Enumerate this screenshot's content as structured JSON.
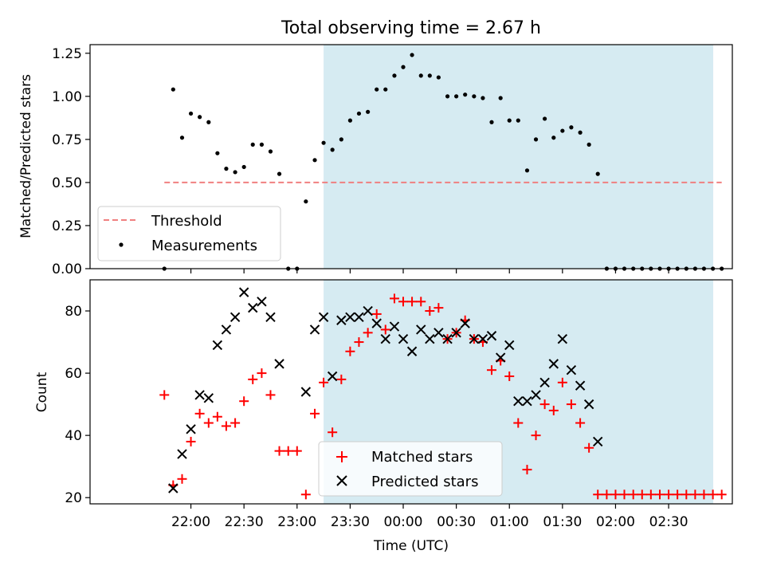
{
  "figure": {
    "title": "Total observing time = 2.67 h",
    "xlabel": "Time (UTC)",
    "x_ticks": [
      "22:00",
      "22:30",
      "23:00",
      "23:30",
      "00:00",
      "00:30",
      "01:00",
      "01:30",
      "02:00",
      "02:30"
    ],
    "x_tick_hours": [
      0,
      0.5,
      1,
      1.5,
      2,
      2.5,
      3,
      3.5,
      4,
      4.5
    ],
    "xlim_hours_after_2200": [
      -0.95,
      5.1
    ],
    "observing_window_hours_after_2200": [
      1.25,
      4.92
    ],
    "observing_window_color": "#add8e6"
  },
  "chart_data": [
    {
      "type": "scatter",
      "ylabel": "Matched/Predicted stars",
      "ylim": [
        0,
        1.3
      ],
      "y_ticks": [
        "0.00",
        "0.25",
        "0.50",
        "0.75",
        "1.00",
        "1.25"
      ],
      "y_tick_values": [
        0,
        0.25,
        0.5,
        0.75,
        1.0,
        1.25
      ],
      "legend_position": "lower-left",
      "threshold": {
        "name": "Threshold",
        "value": 0.5,
        "x_range_hours": [
          -0.25,
          5.0
        ],
        "color": "#f08080",
        "style": "dashed"
      },
      "series": [
        {
          "name": "Measurements",
          "color": "#000000",
          "marker": "dot",
          "x_hours": [
            -0.25,
            -0.167,
            -0.083,
            0,
            0.083,
            0.167,
            0.25,
            0.333,
            0.417,
            0.5,
            0.583,
            0.667,
            0.75,
            0.833,
            0.917,
            1.0,
            1.083,
            1.167,
            1.25,
            1.333,
            1.417,
            1.5,
            1.583,
            1.667,
            1.75,
            1.833,
            1.917,
            2.0,
            2.083,
            2.167,
            2.25,
            2.333,
            2.417,
            2.5,
            2.583,
            2.667,
            2.75,
            2.833,
            2.917,
            3.0,
            3.083,
            3.167,
            3.25,
            3.333,
            3.417,
            3.5,
            3.583,
            3.667,
            3.75,
            3.833,
            3.917,
            4.0,
            4.083,
            4.167,
            4.25,
            4.333,
            4.417,
            4.5,
            4.583,
            4.667,
            4.75,
            4.833,
            4.917,
            5.0
          ],
          "y": [
            0.0,
            1.04,
            0.76,
            0.9,
            0.88,
            0.85,
            0.67,
            0.58,
            0.56,
            0.59,
            0.72,
            0.72,
            0.68,
            0.55,
            0.0,
            0.0,
            0.39,
            0.63,
            0.73,
            0.69,
            0.75,
            0.86,
            0.9,
            0.91,
            1.04,
            1.04,
            1.12,
            1.17,
            1.24,
            1.12,
            1.12,
            1.11,
            1.0,
            1.0,
            1.01,
            1.0,
            0.99,
            0.85,
            0.99,
            0.86,
            0.86,
            0.57,
            0.75,
            0.87,
            0.76,
            0.8,
            0.82,
            0.79,
            0.72,
            0.55,
            0.0,
            0.0,
            0.0,
            0.0,
            0.0,
            0.0,
            0.0,
            0.0,
            0.0,
            0.0,
            0.0,
            0.0,
            0.0,
            0.0
          ]
        }
      ]
    },
    {
      "type": "scatter",
      "ylabel": "Count",
      "ylim": [
        18,
        90
      ],
      "y_ticks": [
        "20",
        "40",
        "60",
        "80"
      ],
      "y_tick_values": [
        20,
        40,
        60,
        80
      ],
      "legend_position": "lower-center",
      "series": [
        {
          "name": "Matched stars",
          "color": "#ff0000",
          "marker": "plus",
          "x_hours": [
            -0.25,
            -0.167,
            -0.083,
            0,
            0.083,
            0.167,
            0.25,
            0.333,
            0.417,
            0.5,
            0.583,
            0.667,
            0.75,
            0.833,
            0.917,
            1.0,
            1.083,
            1.167,
            1.25,
            1.333,
            1.417,
            1.5,
            1.583,
            1.667,
            1.75,
            1.833,
            1.917,
            2.0,
            2.083,
            2.167,
            2.25,
            2.333,
            2.417,
            2.5,
            2.583,
            2.667,
            2.75,
            2.833,
            2.917,
            3.0,
            3.083,
            3.167,
            3.25,
            3.333,
            3.417,
            3.5,
            3.583,
            3.667,
            3.75,
            3.833,
            3.917,
            4.0,
            4.083,
            4.167,
            4.25,
            4.333,
            4.417,
            4.5,
            4.583,
            4.667,
            4.75,
            4.833,
            4.917,
            5.0
          ],
          "y": [
            53,
            24,
            26,
            38,
            47,
            44,
            46,
            43,
            44,
            51,
            58,
            60,
            53,
            35,
            35,
            35,
            21,
            47,
            57,
            41,
            58,
            67,
            70,
            73,
            79,
            74,
            84,
            83,
            83,
            83,
            80,
            81,
            71,
            73,
            77,
            71,
            70,
            61,
            64,
            59,
            44,
            29,
            40,
            50,
            48,
            57,
            50,
            44,
            36,
            21,
            21,
            21,
            21,
            21,
            21,
            21,
            21,
            21,
            21,
            21,
            21,
            21,
            21,
            21
          ]
        },
        {
          "name": "Predicted stars",
          "color": "#000000",
          "marker": "x",
          "x_hours": [
            -0.167,
            -0.083,
            0,
            0.083,
            0.167,
            0.25,
            0.333,
            0.417,
            0.5,
            0.583,
            0.667,
            0.75,
            0.833,
            1.083,
            1.167,
            1.25,
            1.333,
            1.417,
            1.5,
            1.583,
            1.667,
            1.75,
            1.833,
            1.917,
            2.0,
            2.083,
            2.167,
            2.25,
            2.333,
            2.417,
            2.5,
            2.583,
            2.667,
            2.75,
            2.833,
            2.917,
            3.0,
            3.083,
            3.167,
            3.25,
            3.333,
            3.417,
            3.5,
            3.583,
            3.667,
            3.75,
            3.833
          ],
          "y": [
            23,
            34,
            42,
            53,
            52,
            69,
            74,
            78,
            86,
            81,
            83,
            78,
            63,
            54,
            74,
            78,
            59,
            77,
            78,
            78,
            80,
            76,
            71,
            75,
            71,
            67,
            74,
            71,
            73,
            71,
            73,
            76,
            71,
            71,
            72,
            65,
            69,
            51,
            51,
            53,
            57,
            63,
            71,
            61,
            56,
            50,
            38
          ]
        }
      ]
    }
  ]
}
